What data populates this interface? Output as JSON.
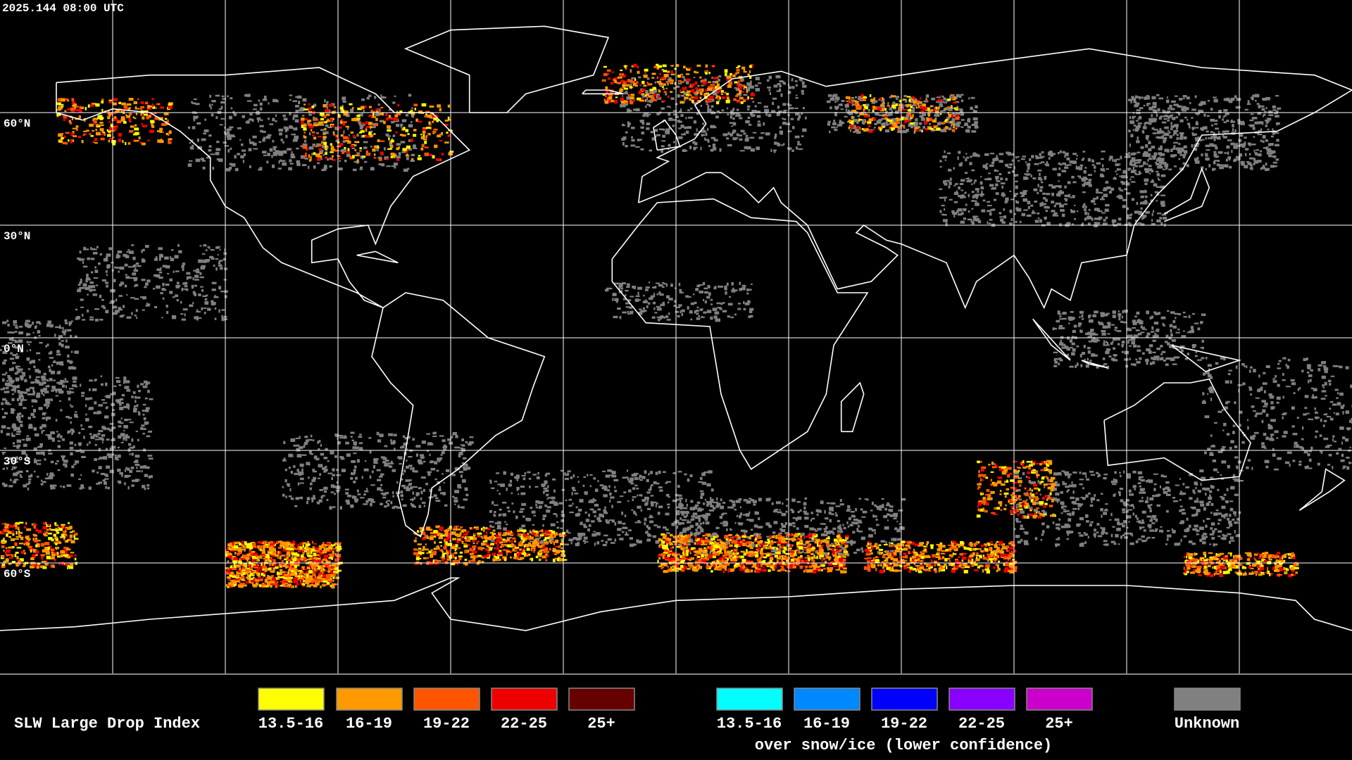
{
  "header": {
    "timestamp": "2025.144 08:00 UTC"
  },
  "map": {
    "latitude_labels": [
      "60°N",
      "30°N",
      "0°N",
      "30°S",
      "60°S"
    ]
  },
  "legend": {
    "title": "SLW Large Drop Index",
    "items": [
      {
        "label": "13.5-16",
        "color": "#ffff00"
      },
      {
        "label": "16-19",
        "color": "#ff9900"
      },
      {
        "label": "19-22",
        "color": "#ff5500"
      },
      {
        "label": "22-25",
        "color": "#ee0000"
      },
      {
        "label": "25+",
        "color": "#660000"
      }
    ],
    "snow_ice_items": [
      {
        "label": "13.5-16",
        "color": "#00ffff"
      },
      {
        "label": "16-19",
        "color": "#0088ff"
      },
      {
        "label": "19-22",
        "color": "#0000ff"
      },
      {
        "label": "22-25",
        "color": "#8800ff"
      },
      {
        "label": "25+",
        "color": "#cc00cc"
      }
    ],
    "snow_ice_caption": "over snow/ice (lower confidence)",
    "unknown": {
      "label": "Unknown",
      "color": "#808080"
    }
  }
}
